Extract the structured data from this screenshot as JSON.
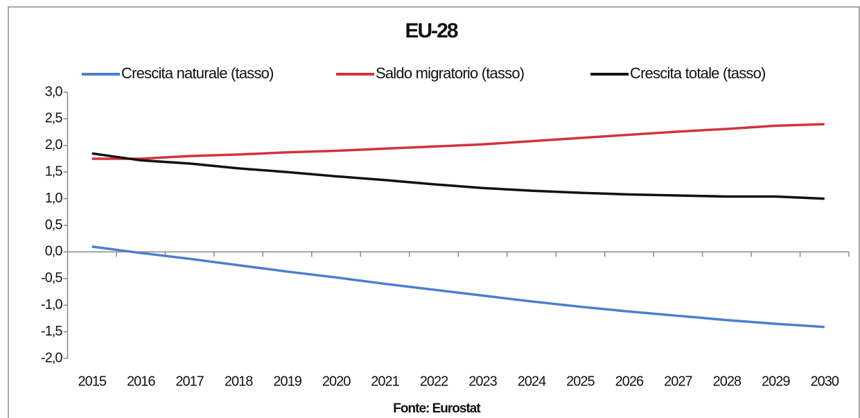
{
  "chart_data": {
    "type": "line",
    "title": "EU-28",
    "source": "Fonte: Eurostat",
    "categories": [
      "2015",
      "2016",
      "2017",
      "2018",
      "2019",
      "2020",
      "2021",
      "2022",
      "2023",
      "2024",
      "2025",
      "2026",
      "2027",
      "2028",
      "2029",
      "2030"
    ],
    "series": [
      {
        "name": "Crescita naturale (tasso)",
        "color": "#4a7fcf",
        "values": [
          0.1,
          -0.02,
          -0.13,
          -0.25,
          -0.37,
          -0.48,
          -0.6,
          -0.71,
          -0.82,
          -0.93,
          -1.03,
          -1.12,
          -1.2,
          -1.28,
          -1.35,
          -1.41
        ]
      },
      {
        "name": "Saldo migratorio (tasso)",
        "color": "#d0343c",
        "values": [
          1.75,
          1.75,
          1.8,
          1.83,
          1.87,
          1.9,
          1.94,
          1.98,
          2.02,
          2.08,
          2.14,
          2.2,
          2.26,
          2.31,
          2.37,
          2.4
        ]
      },
      {
        "name": "Crescita totale (tasso)",
        "color": "#111111",
        "values": [
          1.85,
          1.72,
          1.66,
          1.57,
          1.5,
          1.42,
          1.35,
          1.27,
          1.2,
          1.15,
          1.11,
          1.08,
          1.06,
          1.04,
          1.04,
          1.0
        ]
      }
    ],
    "ylim": [
      -2,
      3
    ],
    "yticks": [
      {
        "value": -2,
        "label": "-2,0"
      },
      {
        "value": -1.5,
        "label": "-1,5"
      },
      {
        "value": -1,
        "label": "-1,0"
      },
      {
        "value": -0.5,
        "label": "-0,5"
      },
      {
        "value": 0,
        "label": "0,0"
      },
      {
        "value": 0.5,
        "label": "0,5"
      },
      {
        "value": 1,
        "label": "1,0"
      },
      {
        "value": 1.5,
        "label": "1,5"
      },
      {
        "value": 2,
        "label": "2,0"
      },
      {
        "value": 2.5,
        "label": "2,5"
      },
      {
        "value": 3,
        "label": "3,0"
      }
    ],
    "legend": "top",
    "grid": false
  }
}
